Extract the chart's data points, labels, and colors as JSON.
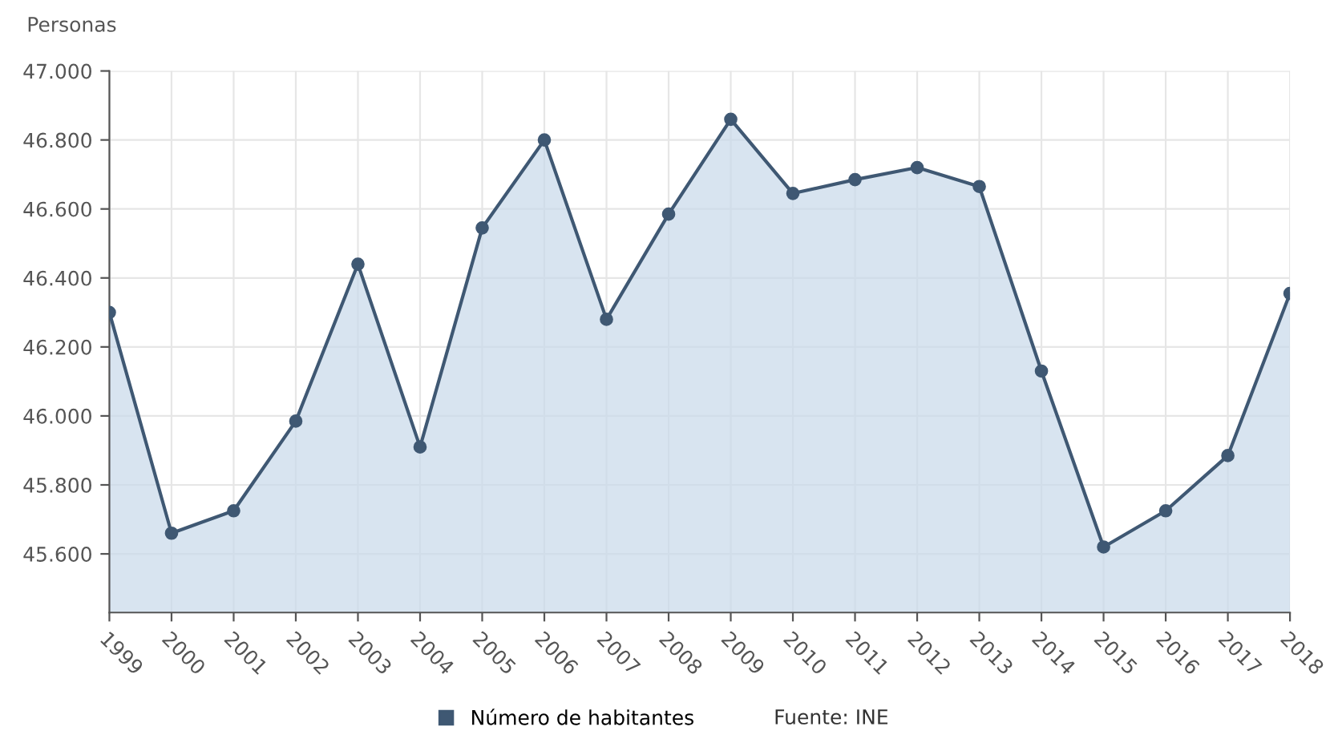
{
  "chart_data": {
    "type": "area",
    "ylabel": "Personas",
    "categories": [
      "1999",
      "2000",
      "2001",
      "2002",
      "2003",
      "2004",
      "2005",
      "2006",
      "2007",
      "2008",
      "2009",
      "2010",
      "2011",
      "2012",
      "2013",
      "2014",
      "2015",
      "2016",
      "2017",
      "2018"
    ],
    "series": [
      {
        "name": "Número de habitantes",
        "color": "#3f5873",
        "values": [
          46300,
          45660,
          45725,
          45985,
          46440,
          45910,
          46545,
          46800,
          46280,
          46585,
          46860,
          46645,
          46685,
          46720,
          46665,
          46130,
          45620,
          45725,
          45885,
          46355
        ]
      }
    ],
    "ylim": [
      45430,
      47000
    ],
    "yticks": [
      {
        "value": 45600,
        "label": "45.600"
      },
      {
        "value": 45800,
        "label": "45.800"
      },
      {
        "value": 46000,
        "label": "46.000"
      },
      {
        "value": 46200,
        "label": "46.200"
      },
      {
        "value": 46400,
        "label": "46.400"
      },
      {
        "value": 46600,
        "label": "46.600"
      },
      {
        "value": 46800,
        "label": "46.800"
      },
      {
        "value": 47000,
        "label": "47.000"
      }
    ],
    "grid": true,
    "legend": "bottom",
    "marker": "circle",
    "annotations": [
      "Fuente: INE"
    ]
  }
}
